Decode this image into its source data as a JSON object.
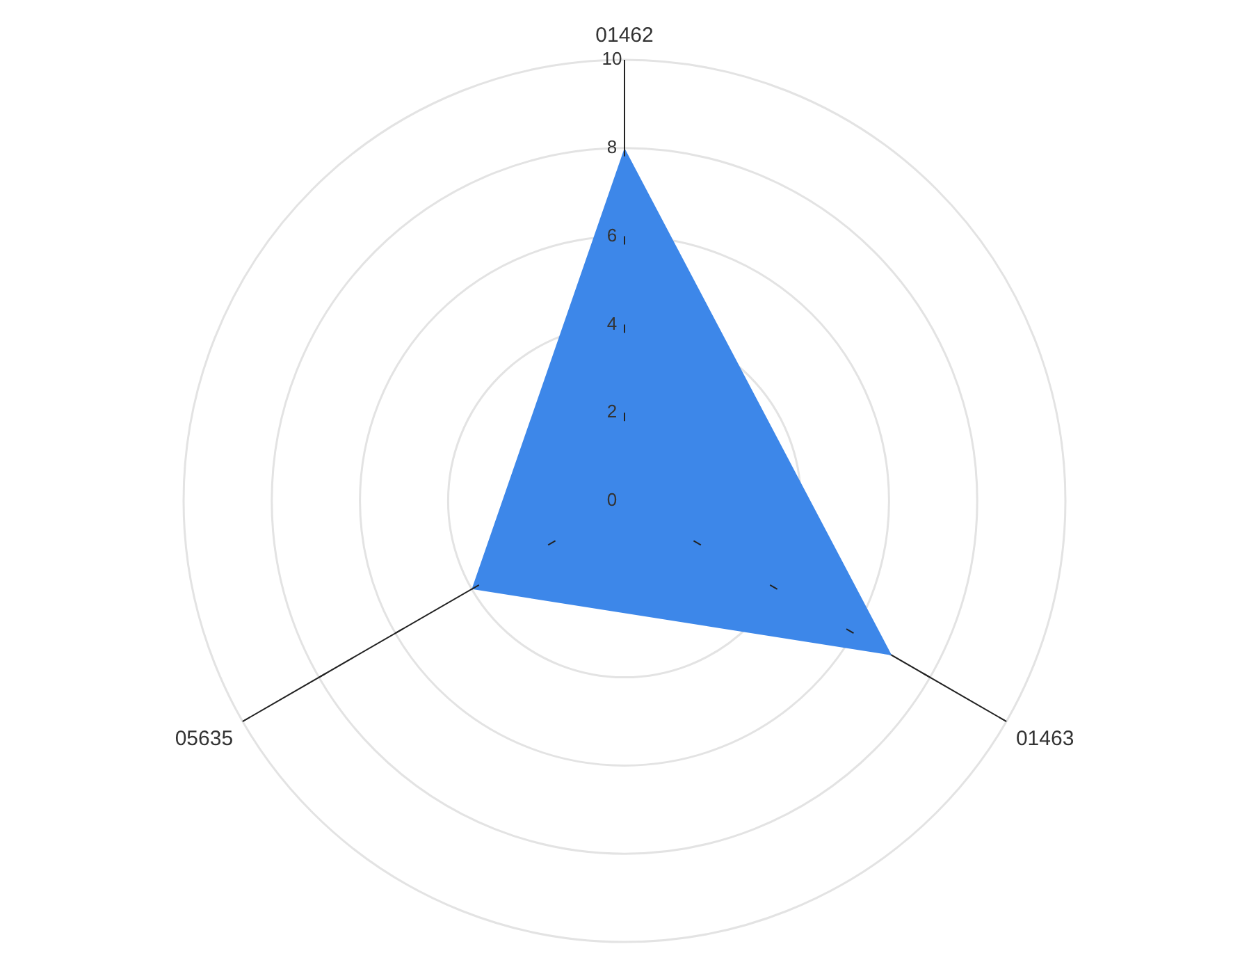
{
  "chart_data": {
    "type": "radar",
    "categories": [
      "01462",
      "01463",
      "05635"
    ],
    "series": [
      {
        "color": "#3d87e9",
        "values": [
          8,
          7,
          4
        ]
      }
    ],
    "ylim": [
      0,
      10
    ],
    "yticks": [
      0,
      2,
      4,
      6,
      8,
      10
    ],
    "grid": true,
    "legend": false,
    "marker": "none"
  }
}
